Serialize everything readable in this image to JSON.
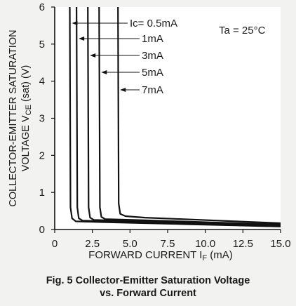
{
  "chart_data": {
    "type": "line",
    "ylabel_line1": "COLLECTOR-EMITTER SATURATION",
    "ylabel_line2_prefix": "VOLTAGE V",
    "ylabel_line2_sub": "CE",
    "ylabel_line2_suffix": " (sat) (V)",
    "xlabel_prefix": "FORWARD CURRENT I",
    "xlabel_sub": "F",
    "xlabel_suffix": " (mA)",
    "xlim": [
      0,
      15
    ],
    "ylim": [
      0,
      6
    ],
    "xticks": [
      0,
      2.5,
      5,
      7.5,
      10,
      12.5,
      15
    ],
    "xtick_labels": [
      "0",
      "2.5",
      "5.0",
      "7.5",
      "10.0",
      "12.5",
      "15.0"
    ],
    "yticks": [
      0,
      1,
      2,
      3,
      4,
      5,
      6
    ],
    "ytick_labels": [
      "0",
      "1",
      "2",
      "3",
      "4",
      "5",
      "6"
    ],
    "condition_label": "Ta = 25°C",
    "series": [
      {
        "name": "Ic= 0.5mA",
        "x": [
          1.0,
          1.05,
          1.15,
          1.4,
          3,
          6,
          9,
          12,
          15
        ],
        "y": [
          6.0,
          0.6,
          0.3,
          0.22,
          0.2,
          0.17,
          0.14,
          0.11,
          0.08
        ]
      },
      {
        "name": "1mA",
        "x": [
          1.45,
          1.5,
          1.6,
          1.85,
          4,
          7,
          10,
          13,
          15
        ],
        "y": [
          6.0,
          0.6,
          0.3,
          0.24,
          0.21,
          0.18,
          0.15,
          0.12,
          0.1
        ]
      },
      {
        "name": "3mA",
        "x": [
          2.2,
          2.25,
          2.35,
          2.6,
          5,
          8,
          11,
          15
        ],
        "y": [
          6.0,
          0.6,
          0.32,
          0.26,
          0.23,
          0.2,
          0.16,
          0.12
        ]
      },
      {
        "name": "5mA",
        "x": [
          2.95,
          3.0,
          3.1,
          3.35,
          6,
          9,
          12,
          15
        ],
        "y": [
          6.0,
          0.6,
          0.34,
          0.28,
          0.25,
          0.21,
          0.17,
          0.14
        ]
      },
      {
        "name": "7mA",
        "x": [
          4.2,
          4.25,
          4.35,
          4.7,
          6,
          9,
          12,
          15
        ],
        "y": [
          6.0,
          0.7,
          0.42,
          0.36,
          0.32,
          0.27,
          0.22,
          0.17
        ]
      }
    ]
  },
  "caption": {
    "line1": "Fig. 5 Collector-Emitter Saturation Voltage",
    "line2": "vs. Forward Current"
  }
}
